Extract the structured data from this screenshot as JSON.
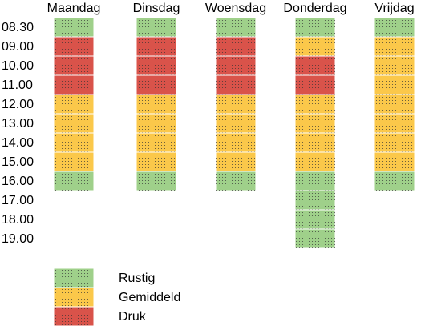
{
  "days": [
    "Maandag",
    "Dinsdag",
    "Woensdag",
    "Donderdag",
    "Vrijdag"
  ],
  "times": [
    "08.30",
    "09.00",
    "10.00",
    "11.00",
    "12.00",
    "13.00",
    "14.00",
    "15.00",
    "16.00",
    "17.00",
    "18.00",
    "19.00"
  ],
  "legend": [
    {
      "label": "Rustig",
      "color": "#9fd08a"
    },
    {
      "label": "Gemiddeld",
      "color": "#fbc84a"
    },
    {
      "label": "Druk",
      "color": "#d9534a"
    }
  ],
  "schedule": [
    [
      "Rustig",
      "Druk",
      "Druk",
      "Druk",
      "Gemiddeld",
      "Gemiddeld",
      "Gemiddeld",
      "Gemiddeld",
      "Rustig",
      null,
      null,
      null
    ],
    [
      "Rustig",
      "Druk",
      "Druk",
      "Druk",
      "Gemiddeld",
      "Gemiddeld",
      "Gemiddeld",
      "Gemiddeld",
      "Rustig",
      null,
      null,
      null
    ],
    [
      "Rustig",
      "Druk",
      "Druk",
      "Druk",
      "Gemiddeld",
      "Gemiddeld",
      "Gemiddeld",
      "Gemiddeld",
      "Rustig",
      null,
      null,
      null
    ],
    [
      "Rustig",
      "Gemiddeld",
      "Druk",
      "Druk",
      "Gemiddeld",
      "Gemiddeld",
      "Gemiddeld",
      "Gemiddeld",
      "Rustig",
      "Rustig",
      "Rustig",
      "Rustig"
    ],
    [
      "Rustig",
      "Gemiddeld",
      "Gemiddeld",
      "Gemiddeld",
      "Gemiddeld",
      "Gemiddeld",
      "Gemiddeld",
      "Gemiddeld",
      "Rustig",
      null,
      null,
      null
    ]
  ]
}
